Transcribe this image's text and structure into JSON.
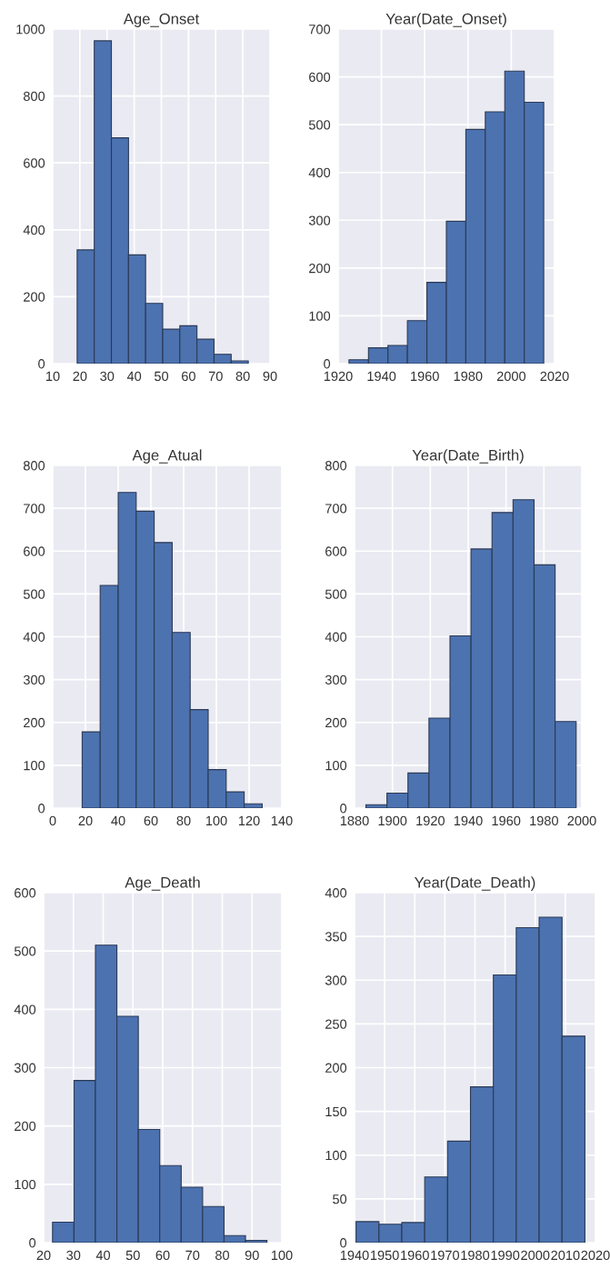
{
  "chart_data": [
    {
      "type": "histogram",
      "title": "Age_Onset",
      "bins": [
        19,
        25.3,
        31.6,
        37.9,
        44.2,
        50.5,
        56.8,
        63.1,
        69.4,
        75.7,
        82
      ],
      "values": [
        340,
        965,
        675,
        325,
        180,
        103,
        113,
        73,
        28,
        8
      ],
      "color": "#4c72b0",
      "xlim": [
        10,
        90
      ],
      "xticks": [
        10,
        20,
        30,
        40,
        50,
        60,
        70,
        80,
        90
      ],
      "ylim": [
        0,
        1000
      ],
      "yticks": [
        0,
        200,
        400,
        600,
        800,
        1000
      ],
      "grid": true
    },
    {
      "type": "histogram",
      "title": "Year(Date_Onset)",
      "bins": [
        1925,
        1934,
        1943,
        1952,
        1961,
        1970,
        1979,
        1988,
        1997,
        2006,
        2015
      ],
      "values": [
        8,
        33,
        38,
        90,
        170,
        298,
        490,
        527,
        612,
        547
      ],
      "color": "#4c72b0",
      "xlim": [
        1920,
        2020
      ],
      "xticks": [
        1920,
        1940,
        1960,
        1980,
        2000,
        2020
      ],
      "ylim": [
        0,
        700
      ],
      "yticks": [
        0,
        100,
        200,
        300,
        400,
        500,
        600,
        700
      ],
      "grid": true
    },
    {
      "type": "histogram",
      "title": "Age_Atual",
      "bins": [
        18,
        29,
        40,
        51,
        62,
        73,
        84,
        95,
        106,
        117,
        128
      ],
      "values": [
        178,
        520,
        737,
        693,
        620,
        410,
        230,
        90,
        38,
        10
      ],
      "color": "#4c72b0",
      "xlim": [
        0,
        140
      ],
      "xticks": [
        0,
        20,
        40,
        60,
        80,
        100,
        120,
        140
      ],
      "ylim": [
        0,
        800
      ],
      "yticks": [
        0,
        100,
        200,
        300,
        400,
        500,
        600,
        700,
        800
      ],
      "grid": true
    },
    {
      "type": "histogram",
      "title": "Year(Date_Birth)",
      "bins": [
        1886,
        1897.1,
        1908.2,
        1919.3,
        1930.4,
        1941.5,
        1952.6,
        1963.7,
        1974.8,
        1985.9,
        1997
      ],
      "values": [
        8,
        35,
        82,
        210,
        402,
        605,
        690,
        720,
        568,
        202
      ],
      "color": "#4c72b0",
      "xlim": [
        1880,
        2000
      ],
      "xticks": [
        1880,
        1900,
        1920,
        1940,
        1960,
        1980,
        2000
      ],
      "ylim": [
        0,
        800
      ],
      "yticks": [
        0,
        100,
        200,
        300,
        400,
        500,
        600,
        700,
        800
      ],
      "grid": true
    },
    {
      "type": "histogram",
      "title": "Age_Death",
      "bins": [
        23,
        30.2,
        37.4,
        44.6,
        51.8,
        59,
        66.2,
        73.4,
        80.6,
        87.8,
        95
      ],
      "values": [
        35,
        278,
        510,
        388,
        194,
        132,
        95,
        62,
        12,
        4
      ],
      "color": "#4c72b0",
      "xlim": [
        20,
        100
      ],
      "xticks": [
        20,
        30,
        40,
        50,
        60,
        70,
        80,
        90,
        100
      ],
      "ylim": [
        0,
        600
      ],
      "yticks": [
        0,
        100,
        200,
        300,
        400,
        500,
        600
      ],
      "grid": true
    },
    {
      "type": "histogram",
      "title": "Year(Date_Death)",
      "bins": [
        1940.5,
        1948.1,
        1955.7,
        1963.3,
        1970.9,
        1978.5,
        1986.1,
        1993.7,
        2001.3,
        2008.9,
        2016.5
      ],
      "values": [
        24,
        21,
        23,
        75,
        116,
        178,
        306,
        360,
        372,
        236
      ],
      "color": "#4c72b0",
      "xlim": [
        1940,
        2020
      ],
      "xticks": [
        1940,
        1950,
        1960,
        1970,
        1980,
        1990,
        2000,
        2010,
        2020
      ],
      "ylim": [
        0,
        400
      ],
      "yticks": [
        0,
        50,
        100,
        150,
        200,
        250,
        300,
        350,
        400
      ],
      "grid": true
    }
  ]
}
